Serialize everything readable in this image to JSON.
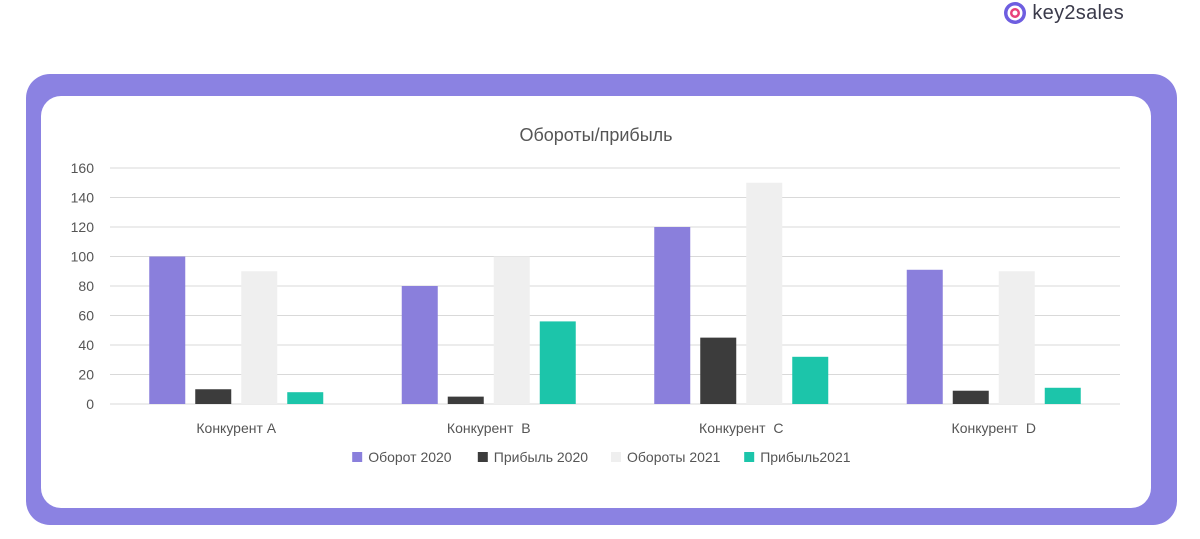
{
  "brand": {
    "name": "key2sales",
    "icon": "target-logo-icon"
  },
  "chart_data": {
    "type": "bar",
    "title": "Обороты/прибыль",
    "categories": [
      "Конкурент A",
      "Конкурент  B",
      "Конкурент  C",
      "Конкурент  D"
    ],
    "series": [
      {
        "name": "Оборот 2020",
        "values": [
          100,
          80,
          120,
          91
        ],
        "color": "#8a7fdc"
      },
      {
        "name": "Прибыль 2020",
        "values": [
          10,
          5,
          45,
          9
        ],
        "color": "#3c3c3c"
      },
      {
        "name": "Обороты 2021",
        "values": [
          90,
          100,
          150,
          90
        ],
        "color": "#efefef"
      },
      {
        "name": "Прибыль2021",
        "values": [
          8,
          56,
          32,
          11
        ],
        "color": "#1cc5aa"
      }
    ],
    "ylim": [
      0,
      160
    ],
    "yticks": [
      0,
      20,
      40,
      60,
      80,
      100,
      120,
      140,
      160
    ],
    "grid": true,
    "legend": "bottom",
    "xlabel": "",
    "ylabel": ""
  },
  "colors": {
    "frame": "#8b82e2",
    "card": "#ffffff",
    "grid": "#d9d9d9"
  }
}
